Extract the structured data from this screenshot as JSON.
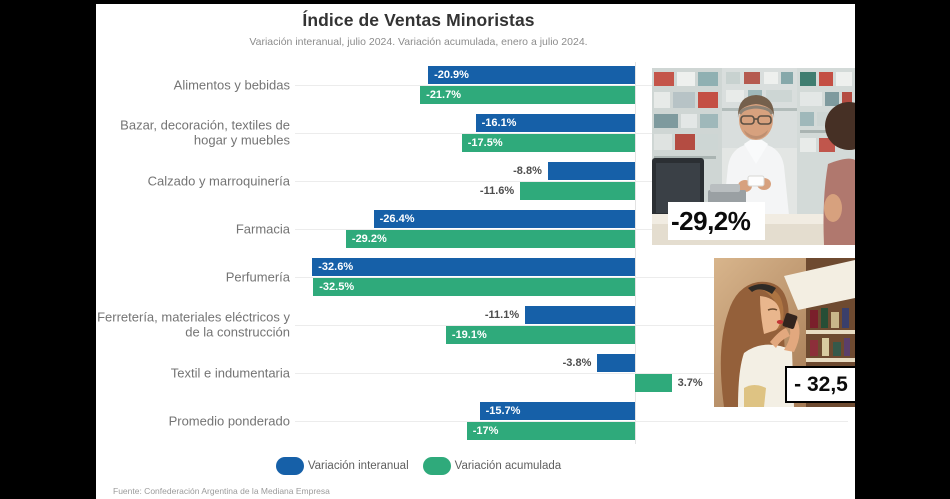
{
  "header": {
    "title": "Índice de Ventas Minoristas",
    "subtitle": "Variación interanual, julio 2024. Variación acumulada, enero a julio 2024."
  },
  "chart_data": {
    "type": "bar",
    "orientation": "horizontal",
    "title": "Índice de Ventas Minoristas",
    "subtitle": "Variación interanual, julio 2024. Variación acumulada, enero a julio 2024.",
    "unit": "%",
    "xlim": [
      -34.3,
      4.5
    ],
    "grid": "category-lines",
    "legend_position": "bottom",
    "categories": [
      "Alimentos y bebidas",
      "Bazar, decoración, textiles de hogar y muebles",
      "Calzado y marroquinería",
      "Farmacia",
      "Perfumería",
      "Ferretería, materiales eléctricos y de la construcción",
      "Textil e indumentaria",
      "Promedio ponderado"
    ],
    "series": [
      {
        "name": "Variación interanual",
        "color": "#1660a8",
        "values": [
          -20.9,
          -16.1,
          -8.8,
          -26.4,
          -32.6,
          -11.1,
          -3.8,
          -15.7
        ],
        "labels": [
          "-20.9%",
          "-16.1%",
          "-8.8%",
          "-26.4%",
          "-32.6%",
          "-11.1%",
          "-3.8%",
          "-15.7%"
        ],
        "label_positions": [
          "inside",
          "inside",
          "outside",
          "inside",
          "inside",
          "outside",
          "outside",
          "inside"
        ]
      },
      {
        "name": "Variación acumulada",
        "color": "#2faa7b",
        "values": [
          -21.7,
          -17.5,
          -11.6,
          -29.2,
          -32.5,
          -19.1,
          3.7,
          -17
        ],
        "labels": [
          "-21.7%",
          "-17.5%",
          "-11.6%",
          "-29.2%",
          "-32.5%",
          "-19.1%",
          "3.7%",
          "-17%"
        ],
        "label_positions": [
          "inside",
          "inside",
          "outside",
          "inside",
          "inside",
          "inside",
          "outside",
          "inside"
        ]
      }
    ]
  },
  "footer": {
    "source": "Fuente: Confederación Argentina de la Mediana Empresa"
  },
  "photos": [
    {
      "name": "pharmacy-counter",
      "overlay_label": "-29,2%"
    },
    {
      "name": "perfume-shopper",
      "overlay_label": "- 32,5"
    }
  ]
}
